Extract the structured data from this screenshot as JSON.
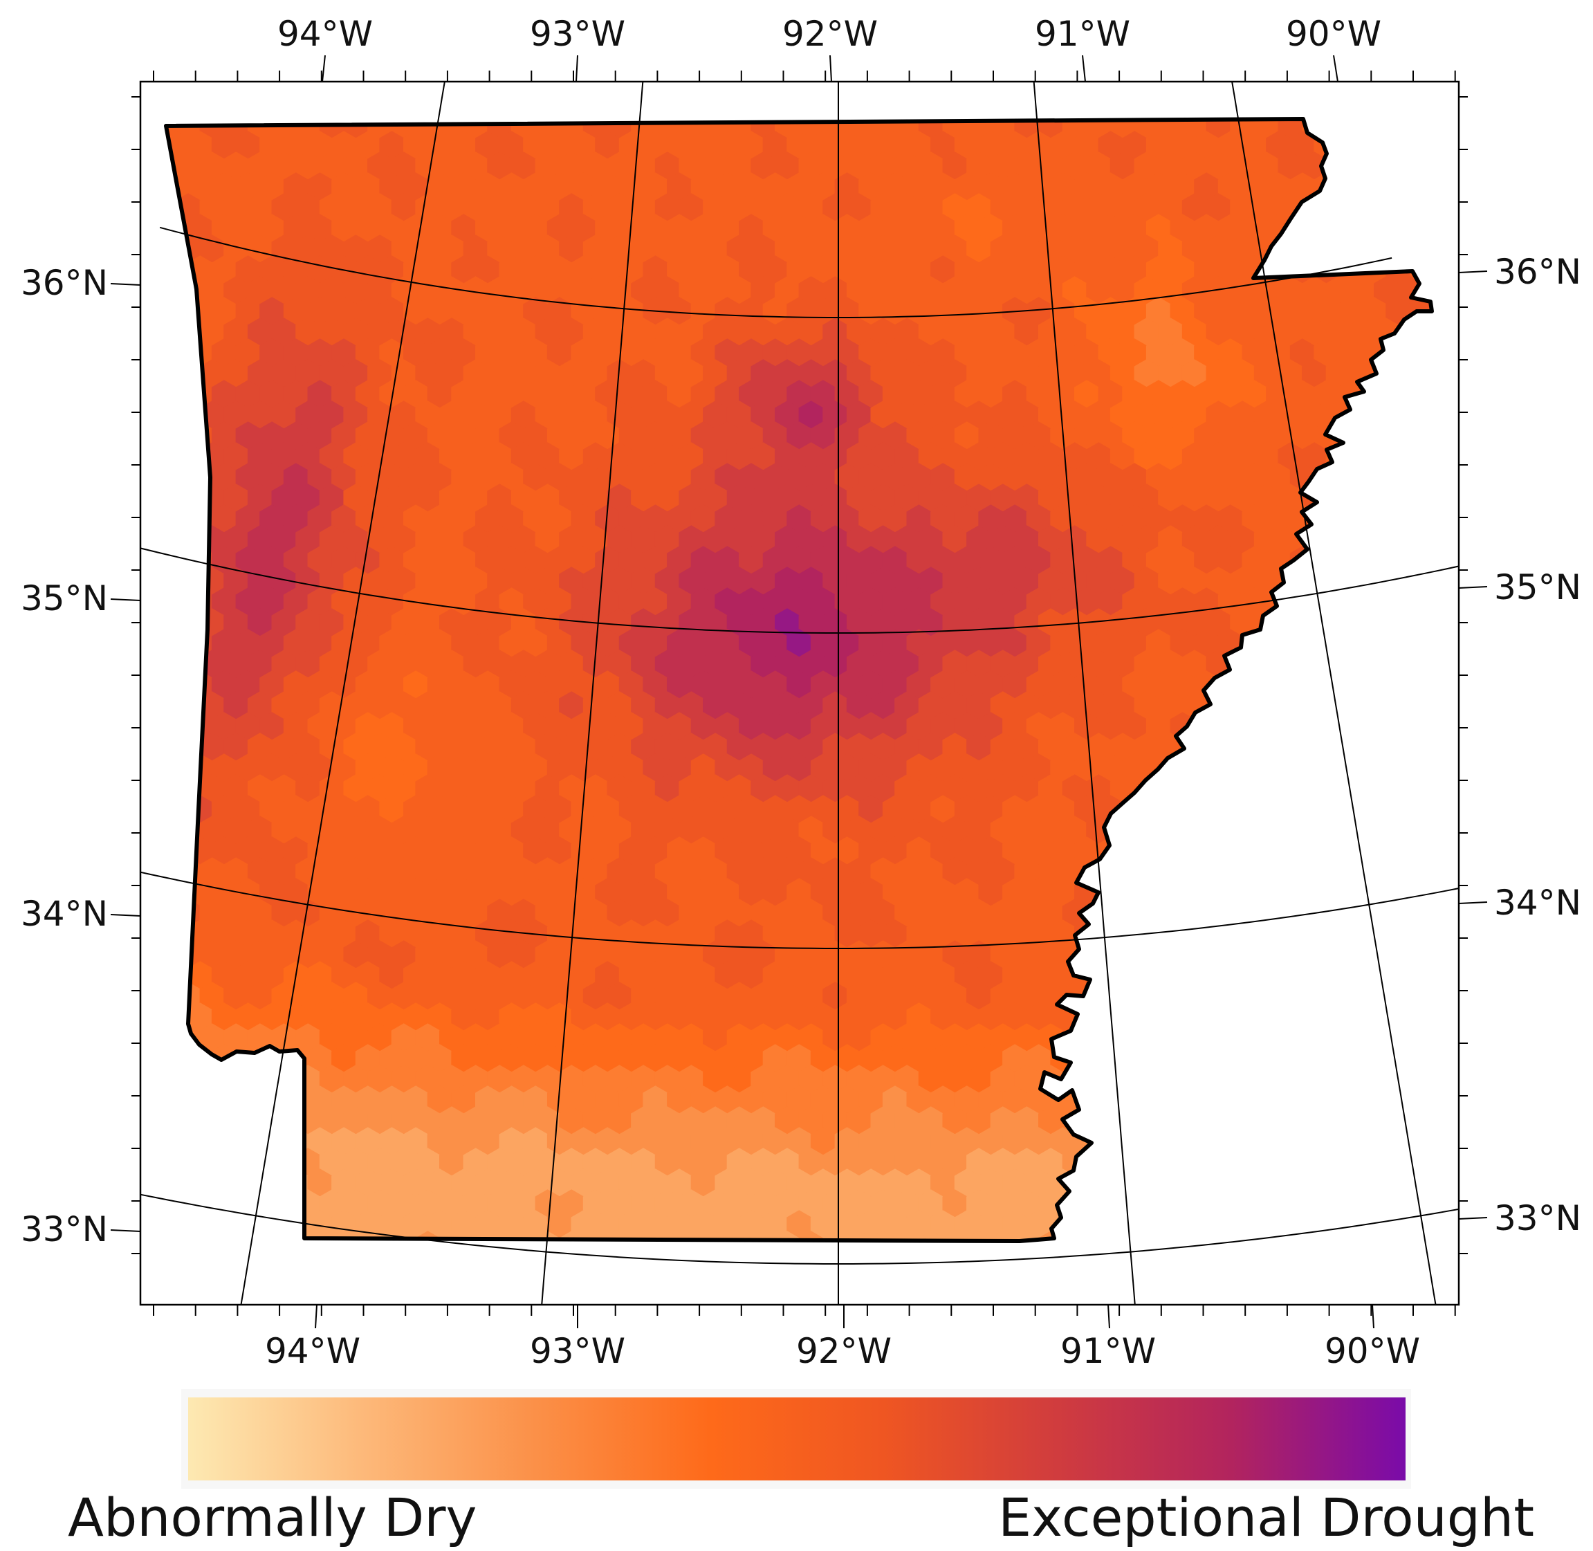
{
  "map": {
    "region": "Arkansas",
    "projection": "lambert-conformal",
    "lon_range": [
      -94.7,
      -89.6
    ],
    "lat_range": [
      32.8,
      36.6
    ],
    "graticule": {
      "lon_labels_top": [
        "94°W",
        "93°W",
        "92°W",
        "91°W",
        "90°W"
      ],
      "lon_labels_bottom": [
        "94°W",
        "93°W",
        "92°W",
        "91°W",
        "90°W"
      ],
      "lat_labels_left": [
        "36°N",
        "35°N",
        "34°N",
        "33°N"
      ],
      "lat_labels_right": [
        "36°N",
        "35°N",
        "34°N",
        "33°N"
      ]
    },
    "border_color": "#000000",
    "hex_grid": true
  },
  "legend": {
    "low_label": "Abnormally Dry",
    "high_label": "Exceptional Drought",
    "colors": [
      "#fde9b2",
      "#fdb97a",
      "#fb9048",
      "#fe6a1a",
      "#ef5622",
      "#d03c3e",
      "#b2245e",
      "#7a0ba9"
    ]
  }
}
